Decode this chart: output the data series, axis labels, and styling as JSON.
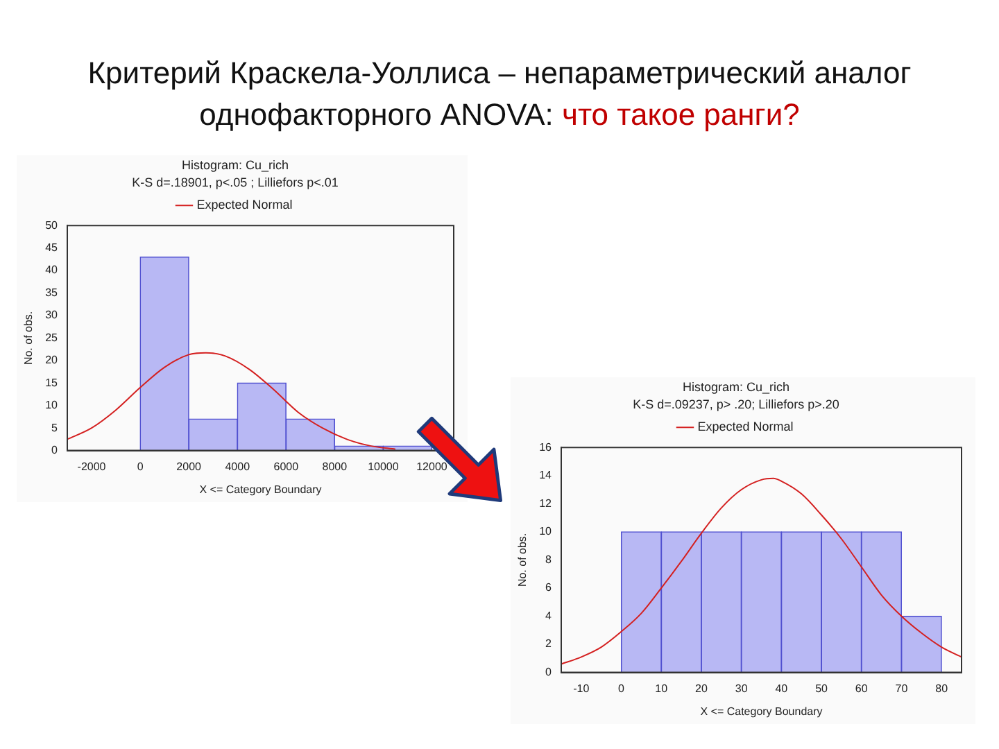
{
  "chart_data": [
    {
      "type": "histogram",
      "annotations": [
        "Критерий Краскела-Уоллиса – непараметрический аналог однофакторного ANOVA:",
        "что такое ранги?"
      ],
      "title": "Histogram: Cu_rich",
      "subtitle": "K-S d=.18901, p<.05 ; Lilliefors p<.01",
      "xlabel": "X <= Category Boundary",
      "ylabel": "No. of obs.",
      "bins": [
        0,
        2000,
        4000,
        6000,
        8000,
        10000,
        12000
      ],
      "values": [
        43,
        7,
        15,
        7,
        1,
        1
      ],
      "color": "#b8b8f4",
      "series": [
        {
          "type": "line",
          "name": "Expected Normal",
          "color": "#d42020",
          "x": [
            -3000,
            -2000,
            -1000,
            0,
            1000,
            2000,
            2700,
            3500,
            4500,
            5500,
            6500,
            7500,
            8500,
            9500,
            10500
          ],
          "values": [
            2.5,
            5,
            9,
            14,
            18.5,
            21.3,
            21.7,
            21,
            18,
            13.5,
            8.5,
            5,
            2.5,
            1,
            0.3
          ]
        }
      ],
      "xlim": [
        -3000,
        12900
      ],
      "xticks": [
        -2000,
        0,
        2000,
        4000,
        6000,
        8000,
        10000,
        12000
      ],
      "ylim": [
        0,
        50
      ],
      "yticks": [
        0,
        5,
        10,
        15,
        20,
        25,
        30,
        35,
        40,
        45,
        50
      ],
      "legend": "top",
      "marker": "none"
    },
    {
      "type": "histogram",
      "title": "Histogram: Cu_rich",
      "subtitle": "K-S d=.09237, p> .20; Lilliefors p>.20",
      "xlabel": "X <= Category Boundary",
      "ylabel": "No. of obs.",
      "bins": [
        0,
        10,
        20,
        30,
        40,
        50,
        60,
        70,
        80
      ],
      "values": [
        10,
        10,
        10,
        10,
        10,
        10,
        10,
        4
      ],
      "color": "#b8b8f4",
      "series": [
        {
          "type": "line",
          "name": "Expected Normal",
          "color": "#d42020",
          "x": [
            -15,
            -10,
            -5,
            0,
            5,
            10,
            15,
            20,
            25,
            30,
            35,
            38,
            40,
            45,
            50,
            55,
            60,
            65,
            70,
            75,
            80,
            85
          ],
          "values": [
            0.6,
            1.1,
            1.8,
            2.9,
            4.2,
            6,
            7.9,
            9.9,
            11.7,
            13,
            13.7,
            13.8,
            13.6,
            12.7,
            11.2,
            9.5,
            7.5,
            5.5,
            4,
            2.8,
            1.8,
            1.1
          ]
        }
      ],
      "xlim": [
        -15,
        85
      ],
      "xticks": [
        -10,
        0,
        10,
        20,
        30,
        40,
        50,
        60,
        70,
        80
      ],
      "ylim": [
        0,
        16
      ],
      "yticks": [
        0,
        2,
        4,
        6,
        8,
        10,
        12,
        14,
        16
      ],
      "legend": "top",
      "marker": "none"
    }
  ]
}
